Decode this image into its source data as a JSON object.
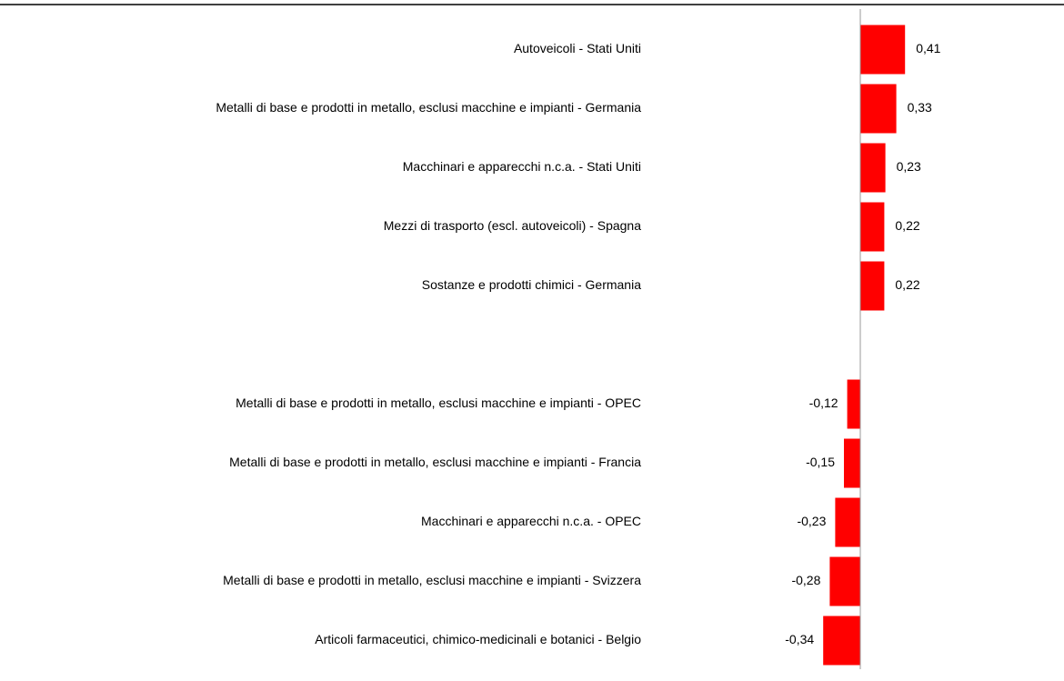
{
  "chart_data": {
    "type": "barh",
    "categories": [
      "Autoveicoli - Stati Uniti",
      "Metalli di base e prodotti in metallo, esclusi macchine e impianti - Germania",
      "Macchinari e apparecchi n.c.a. - Stati Uniti",
      "Mezzi di trasporto (escl. autoveicoli) - Spagna",
      "Sostanze e prodotti chimici - Germania",
      null,
      "Metalli di base e prodotti in metallo, esclusi macchine e impianti - OPEC",
      "Metalli di base e prodotti in metallo, esclusi macchine e impianti - Francia",
      "Macchinari e apparecchi n.c.a. - OPEC",
      "Metalli di base e prodotti in metallo, esclusi macchine e impianti - Svizzera",
      "Articoli farmaceutici, chimico-medicinali e botanici - Belgio"
    ],
    "values": [
      0.41,
      0.33,
      0.23,
      0.22,
      0.22,
      null,
      -0.12,
      -0.15,
      -0.23,
      -0.28,
      -0.34
    ],
    "value_labels": [
      "0,41",
      "0,33",
      "0,23",
      "0,22",
      "0,22",
      null,
      "-0,12",
      "-0,15",
      "-0,23",
      "-0,28",
      "-0,34"
    ],
    "color": "#ff0000",
    "xlim": [
      -0.4,
      0.45
    ]
  }
}
